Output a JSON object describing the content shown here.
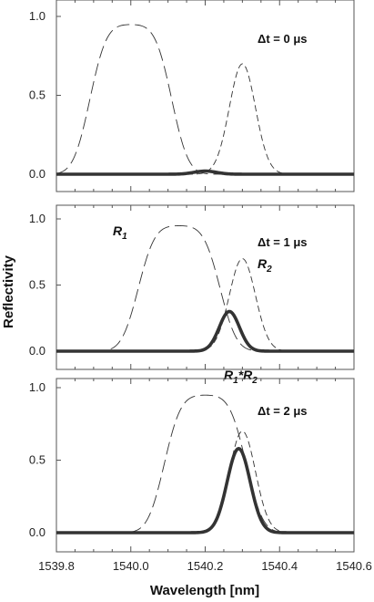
{
  "chart_data": {
    "type": "line",
    "xlabel": "Wavelength [nm]",
    "ylabel": "Reflectivity",
    "xlim": [
      1539.8,
      1540.6
    ],
    "ylim": [
      -0.05,
      1.1
    ],
    "x_tick_labels": [
      "1539.8",
      "1540.0",
      "1540.2",
      "1540.4",
      "1540.6"
    ],
    "y_tick_labels": [
      "0.0",
      "0.5",
      "1.0"
    ],
    "panels": [
      {
        "annotation": "Δt  =  0 μs",
        "curve_labels": [],
        "series": [
          {
            "role": "R1",
            "style": "long-dash",
            "shape": "flat-top",
            "center": 1540.0,
            "half_width": 0.11,
            "edge_sigma": 0.035,
            "peak": 0.95
          },
          {
            "role": "R2",
            "style": "dash",
            "shape": "gaussian",
            "center": 1540.3,
            "sigma": 0.035,
            "peak": 0.7
          },
          {
            "role": "product",
            "style": "thick-solid",
            "shape": "gaussian",
            "center": 1540.2,
            "sigma": 0.03,
            "peak": 0.02
          }
        ]
      },
      {
        "annotation": "Δt  =  1 μs",
        "curve_labels": [
          {
            "main": "R",
            "sub": "1"
          },
          {
            "main": "R",
            "sub": "2"
          },
          {
            "main": "R",
            "sub": "1",
            "op": "*",
            "main2": "R",
            "sub2": "2"
          }
        ],
        "series": [
          {
            "role": "R1",
            "style": "long-dash",
            "shape": "flat-top",
            "center": 1540.13,
            "half_width": 0.11,
            "edge_sigma": 0.035,
            "peak": 0.95
          },
          {
            "role": "R2",
            "style": "dash",
            "shape": "gaussian",
            "center": 1540.3,
            "sigma": 0.035,
            "peak": 0.7
          },
          {
            "role": "product",
            "style": "thick-solid",
            "shape": "gaussian",
            "center": 1540.265,
            "sigma": 0.027,
            "peak": 0.3
          }
        ]
      },
      {
        "annotation": "Δt  =  2 μs",
        "curve_labels": [],
        "series": [
          {
            "role": "R1",
            "style": "long-dash",
            "shape": "flat-top",
            "center": 1540.2,
            "half_width": 0.11,
            "edge_sigma": 0.035,
            "peak": 0.95
          },
          {
            "role": "R2",
            "style": "dash",
            "shape": "gaussian",
            "center": 1540.3,
            "sigma": 0.035,
            "peak": 0.7
          },
          {
            "role": "product",
            "style": "thick-solid",
            "shape": "gaussian",
            "center": 1540.29,
            "sigma": 0.031,
            "peak": 0.58
          }
        ]
      }
    ]
  }
}
